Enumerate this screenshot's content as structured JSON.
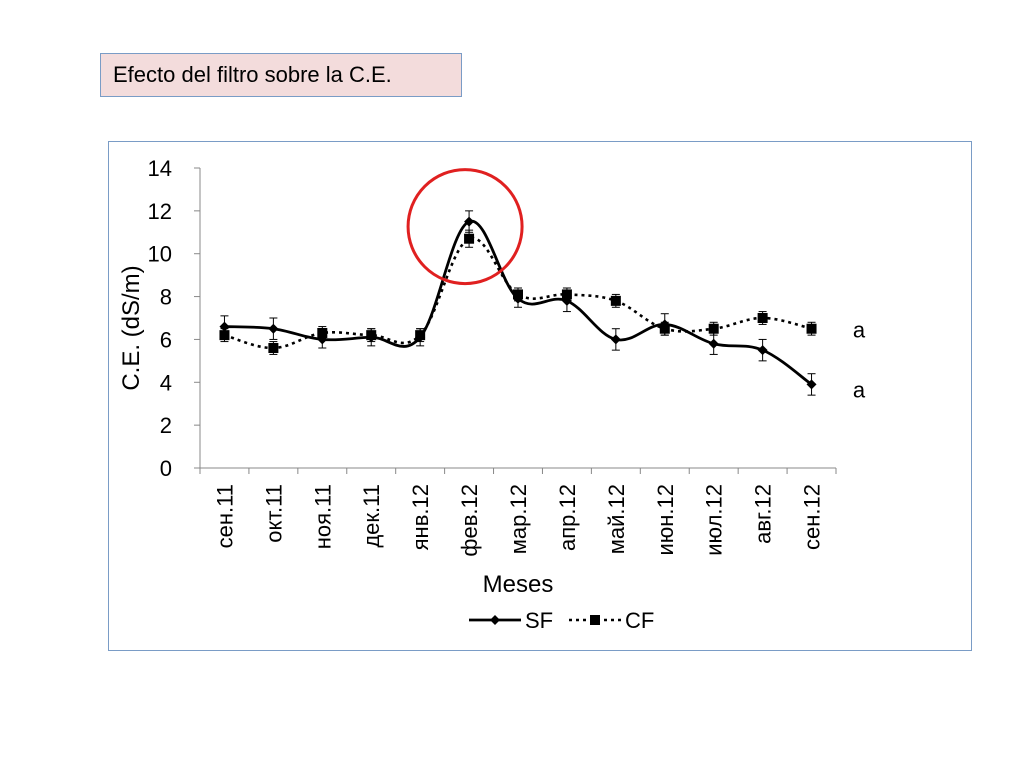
{
  "slide": {
    "title": "Efecto del filtro sobre la C.E."
  },
  "chart_data": {
    "type": "line",
    "categories": [
      "сен.11",
      "окт.11",
      "ноя.11",
      "дек.11",
      "янв.12",
      "фев.12",
      "мар.12",
      "апр.12",
      "май.12",
      "июн.12",
      "июл.12",
      "авг.12",
      "сен.12"
    ],
    "xlabel": "Meses",
    "ylabel": "C.E. (dS/m)",
    "ylim": [
      0,
      14
    ],
    "yticks": [
      0,
      2,
      4,
      6,
      8,
      10,
      12,
      14
    ],
    "series": [
      {
        "name": "SF",
        "marker": "diamond",
        "line_style": "solid",
        "smooth": true,
        "values": [
          6.6,
          6.5,
          6.0,
          6.1,
          6.1,
          11.5,
          7.9,
          7.8,
          6.0,
          6.7,
          5.8,
          5.5,
          3.9
        ],
        "errors": [
          0.5,
          0.5,
          0.4,
          0.4,
          0.4,
          0.5,
          0.4,
          0.5,
          0.5,
          0.5,
          0.5,
          0.5,
          0.5
        ]
      },
      {
        "name": "CF",
        "marker": "square",
        "line_style": "dotted",
        "smooth": true,
        "values": [
          6.2,
          5.6,
          6.3,
          6.2,
          6.2,
          10.7,
          8.1,
          8.1,
          7.8,
          6.5,
          6.5,
          7.0,
          6.5
        ],
        "errors": [
          0.3,
          0.3,
          0.3,
          0.3,
          0.3,
          0.4,
          0.3,
          0.3,
          0.3,
          0.3,
          0.3,
          0.3,
          0.3
        ]
      }
    ],
    "annotations": [
      {
        "text": "a",
        "series": "CF"
      },
      {
        "text": "a",
        "series": "SF"
      }
    ],
    "highlight": {
      "type": "circle",
      "category": "фев.12",
      "color": "#e02020"
    },
    "legend_position": "bottom",
    "grid": false,
    "line_color": "#000000"
  }
}
